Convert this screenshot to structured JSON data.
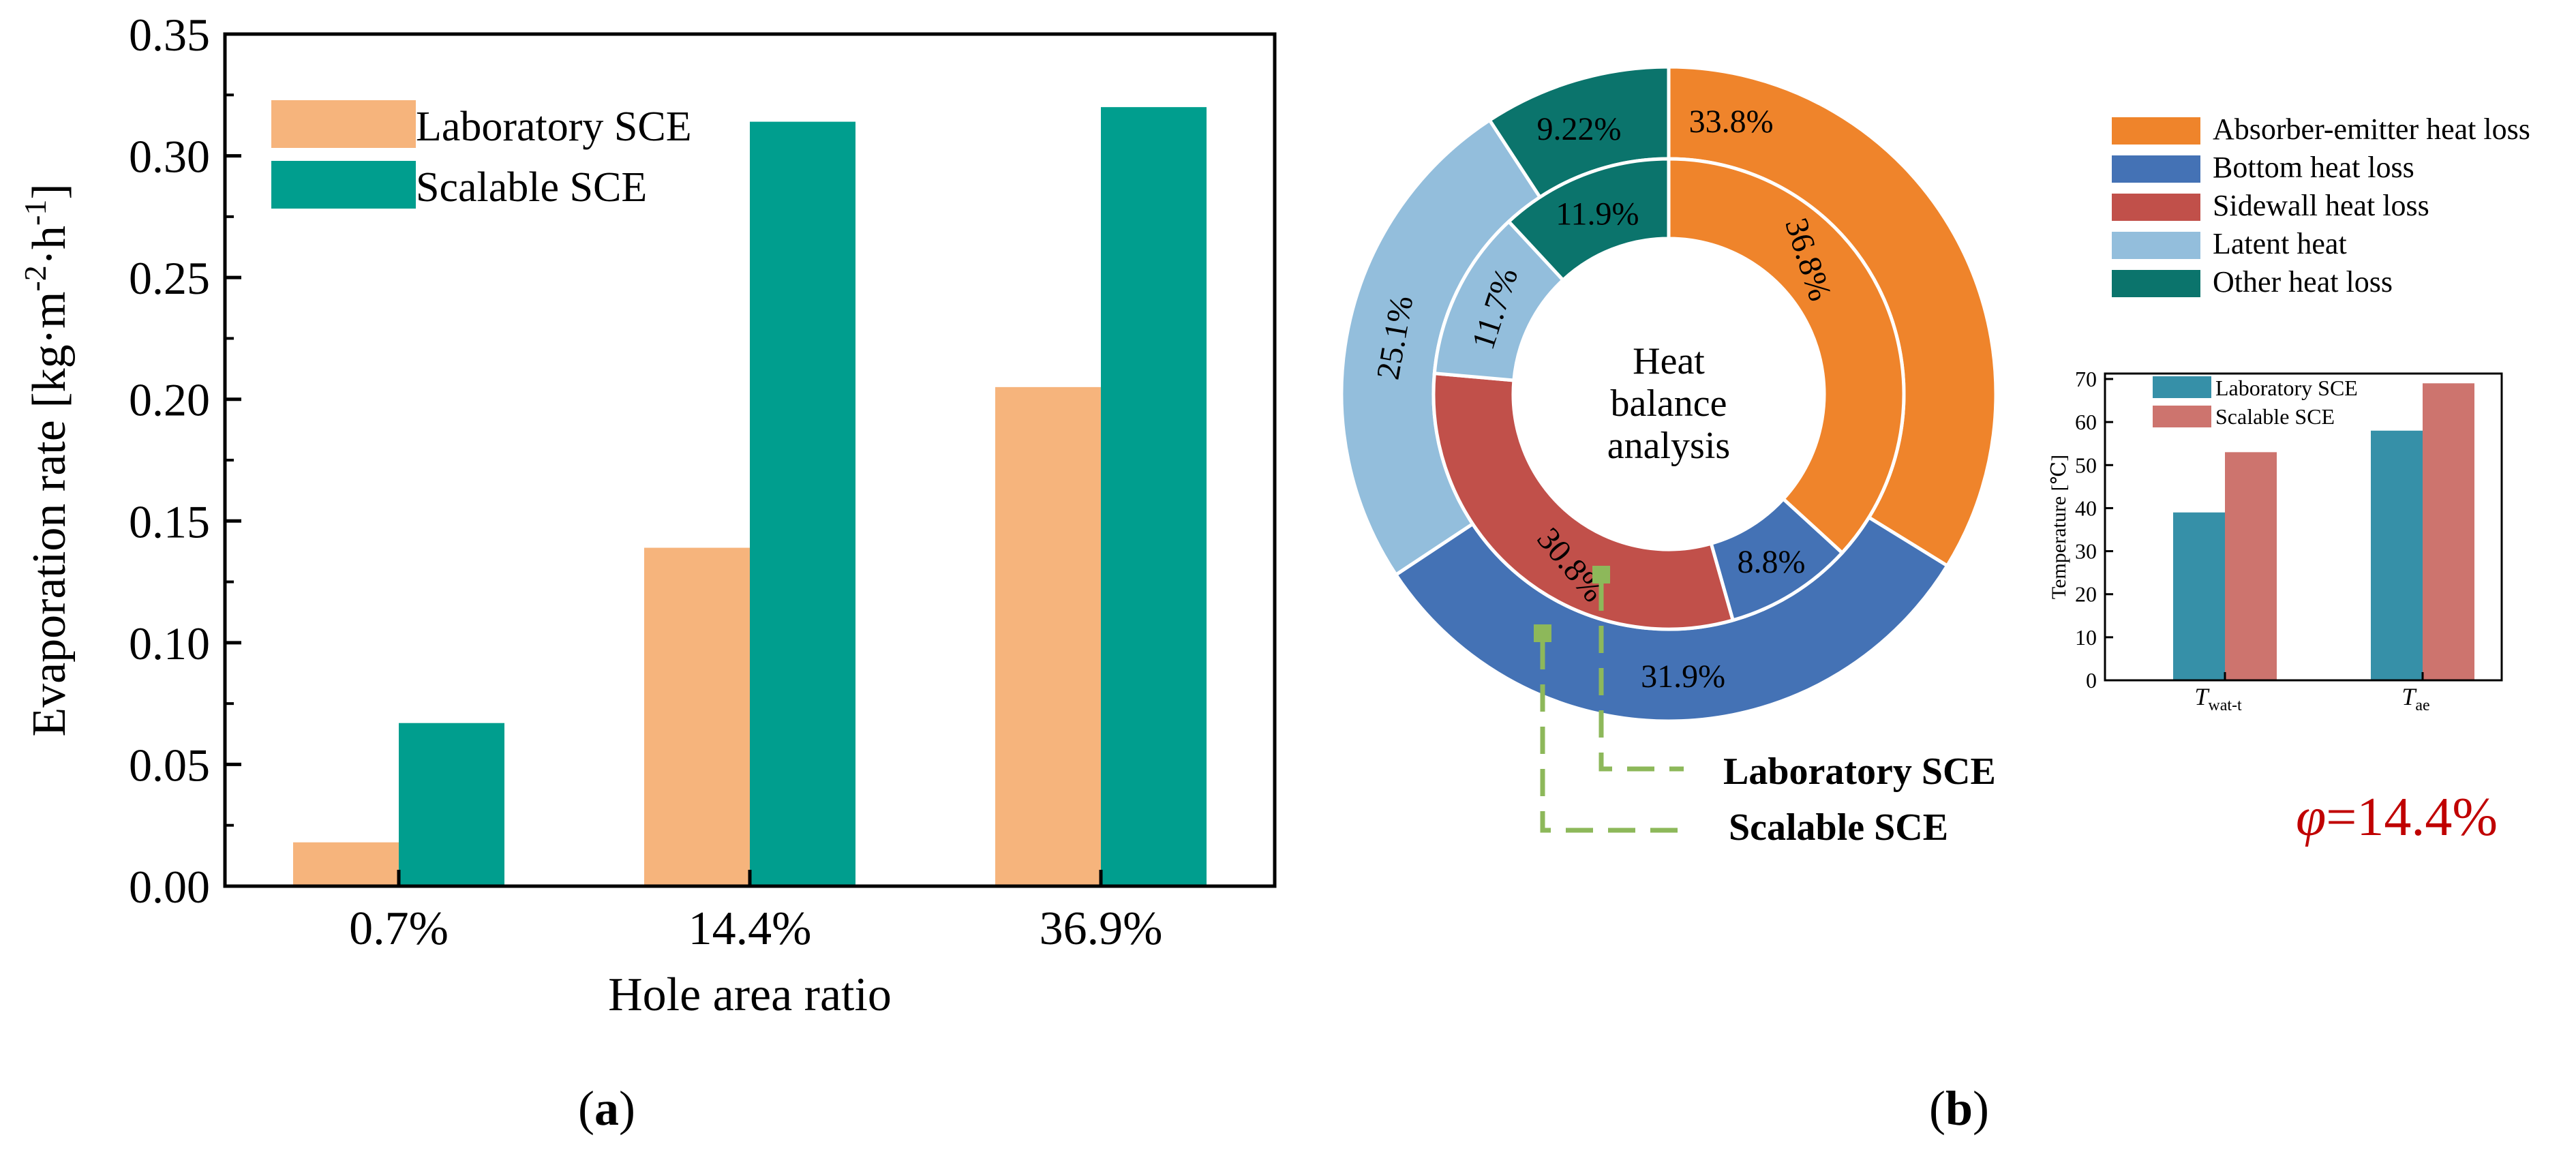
{
  "colors": {
    "lab_bar": "#F6B47C",
    "scalable_bar": "#009E8E",
    "absorber": "#EF842B",
    "bottom": "#4472B5",
    "sidewall": "#C1504A",
    "latent": "#93BEDC",
    "other": "#0B746C",
    "inset_lab": "#3690A8",
    "inset_scalable": "#CD746E",
    "pointer": "#8DB85A",
    "phi": "#C00000"
  },
  "panel_a": {
    "label": "a"
  },
  "panel_b": {
    "label": "b",
    "donut_center_lines": [
      "Heat",
      "balance",
      "analysis"
    ],
    "pointer_labels": {
      "lab": "Laboratory SCE",
      "scalable": "Scalable SCE"
    },
    "phi_symbol": "φ",
    "phi_value": "=14.4%"
  },
  "chart_data": [
    {
      "type": "bar",
      "title": "",
      "xlabel": "Hole area ratio",
      "ylabel_main": "Evaporation rate [kg·m",
      "ylabel_sup1": "-2",
      "ylabel_mid": "·h",
      "ylabel_sup2": "-1",
      "ylabel_end": "]",
      "categories": [
        "0.7%",
        "14.4%",
        "36.9%"
      ],
      "series": [
        {
          "name": "Laboratory SCE",
          "values": [
            0.018,
            0.139,
            0.205
          ]
        },
        {
          "name": "Scalable SCE",
          "values": [
            0.067,
            0.314,
            0.32
          ]
        }
      ],
      "ylim": [
        0,
        0.35
      ],
      "yticks": [
        "0.00",
        "0.05",
        "0.10",
        "0.15",
        "0.20",
        "0.25",
        "0.30",
        "0.35"
      ],
      "legend_position": "top-left"
    },
    {
      "type": "pie",
      "title": "Heat balance analysis",
      "legend": [
        "Absorber-emitter heat loss",
        "Bottom heat loss",
        "Sidewall heat loss",
        "Latent heat",
        "Other heat loss"
      ],
      "rings": [
        {
          "name": "Scalable SCE",
          "ring": "outer",
          "values": [
            33.8,
            31.9,
            0,
            25.1,
            9.22
          ],
          "labels": [
            "33.8%",
            "31.9%",
            "",
            "25.1%",
            "9.22%"
          ]
        },
        {
          "name": "Laboratory SCE",
          "ring": "inner",
          "values": [
            36.8,
            8.8,
            30.8,
            11.7,
            11.9
          ],
          "labels": [
            "36.8%",
            "8.8%",
            "30.8%",
            "11.7%",
            "11.9%"
          ]
        }
      ]
    },
    {
      "type": "bar",
      "title": "",
      "ylabel": "Temperature [℃]",
      "categories": [
        {
          "main": "T",
          "sub": "wat-t"
        },
        {
          "main": "T",
          "sub": "ae"
        }
      ],
      "series": [
        {
          "name": "Laboratory SCE",
          "values": [
            39,
            58
          ]
        },
        {
          "name": "Scalable SCE",
          "values": [
            53,
            69
          ]
        }
      ],
      "ylim": [
        0,
        70
      ],
      "yticks": [
        "0",
        "10",
        "20",
        "30",
        "40",
        "50",
        "60",
        "70"
      ],
      "legend_position": "top-left"
    }
  ]
}
